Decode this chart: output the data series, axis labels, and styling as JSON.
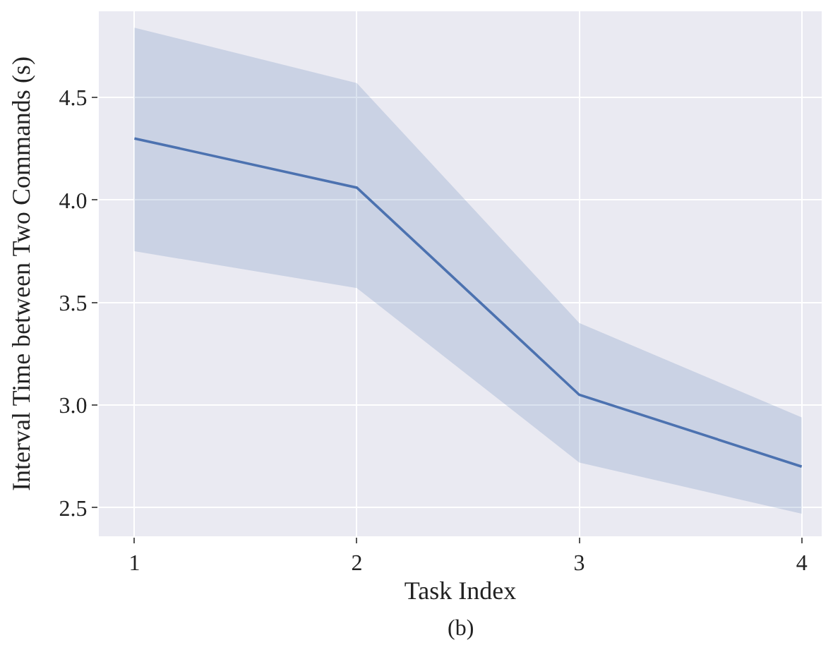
{
  "chart_data": {
    "type": "line",
    "xlabel": "Task Index",
    "ylabel": "Interval Time between Two Commands (s)",
    "annotations": [
      "(b)"
    ],
    "x": [
      1,
      2,
      3,
      4
    ],
    "series": [
      {
        "color": "#4c72b0",
        "values": [
          4.3,
          4.06,
          3.05,
          2.7
        ],
        "lower": [
          3.75,
          3.57,
          2.72,
          2.47
        ],
        "upper": [
          4.84,
          4.57,
          3.4,
          2.94
        ]
      }
    ],
    "xlim": [
      0.84,
      4.09
    ],
    "xticks": [
      1,
      2,
      3,
      4
    ],
    "ylim": [
      2.36,
      4.92
    ],
    "yticks": [
      2.5,
      {
        "value": 3,
        "label": "3.0"
      },
      3.5,
      {
        "value": 4,
        "label": "4.0"
      },
      4.5
    ],
    "grid": true,
    "marker": "none",
    "line_style": "solid"
  }
}
